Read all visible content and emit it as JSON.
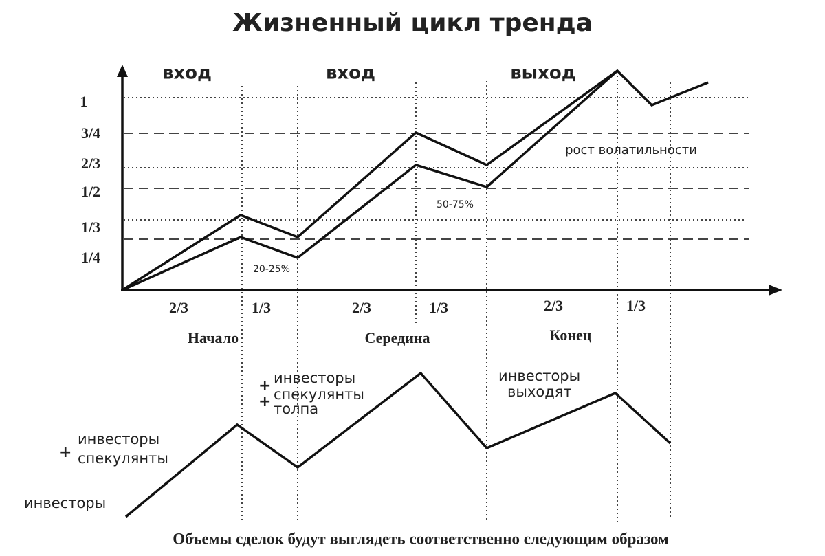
{
  "title": "Жизненный цикл тренда",
  "phases": [
    "вход",
    "вход",
    "выход"
  ],
  "y_labels": [
    "1",
    "3/4",
    "2/3",
    "1/2",
    "1/3",
    "1/4"
  ],
  "annotations": {
    "volatility": "рост волатильности",
    "range_mid": "50-75%",
    "range_low": "20-25%"
  },
  "splits": [
    "2/3",
    "1/3",
    "2/3",
    "1/3",
    "2/3",
    "1/3"
  ],
  "stages": [
    "Начало",
    "Середина",
    "Конец"
  ],
  "volume_labels": {
    "start": "инвесторы",
    "second": [
      "инвесторы",
      "спекулянты"
    ],
    "third": [
      "инвесторы",
      "спекулянты",
      "толпа"
    ],
    "exit": [
      "инвесторы",
      "выходят"
    ]
  },
  "caption": "Объемы сделок будут выглядеть соответственно следующим образом"
}
